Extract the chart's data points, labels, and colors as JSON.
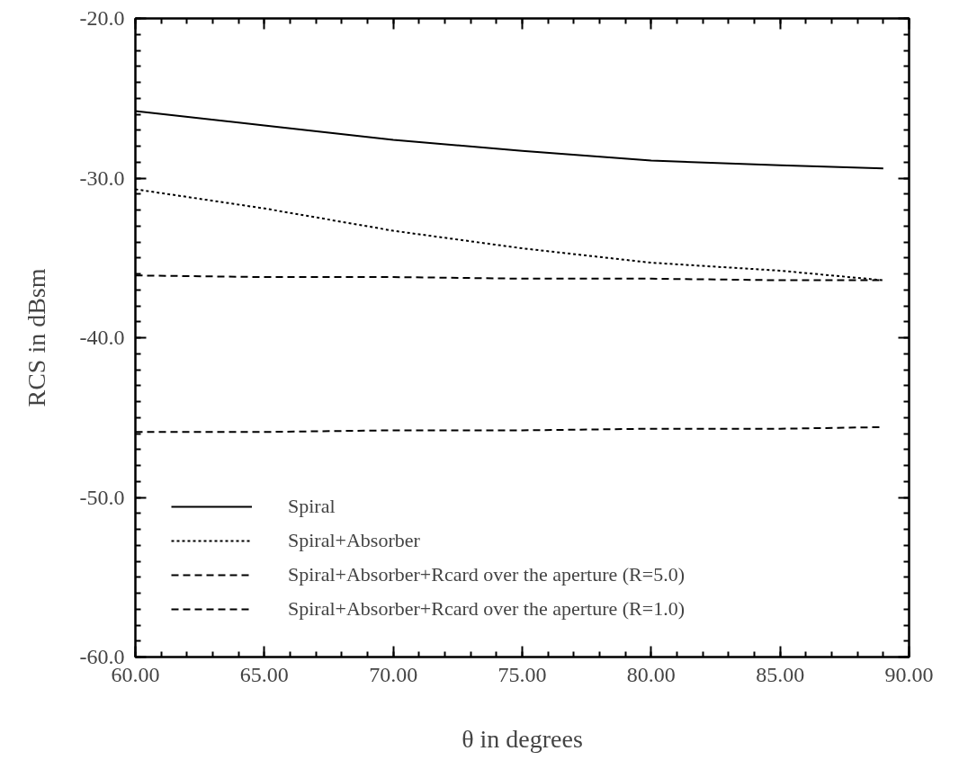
{
  "chart_data": {
    "type": "line",
    "xlabel": "θ in degrees",
    "ylabel": "RCS in dBsm",
    "xlim": [
      60,
      90
    ],
    "ylim": [
      -60,
      -20
    ],
    "xticks": [
      {
        "value": 60,
        "label": "60.00"
      },
      {
        "value": 65,
        "label": "65.00"
      },
      {
        "value": 70,
        "label": "70.00"
      },
      {
        "value": 75,
        "label": "75.00"
      },
      {
        "value": 80,
        "label": "80.00"
      },
      {
        "value": 85,
        "label": "85.00"
      },
      {
        "value": 90,
        "label": "90.00"
      }
    ],
    "yticks": [
      {
        "value": -60,
        "label": "-60.0"
      },
      {
        "value": -50,
        "label": "-50.0"
      },
      {
        "value": -40,
        "label": "-40.0"
      },
      {
        "value": -30,
        "label": "-30.0"
      },
      {
        "value": -20,
        "label": "-20.0"
      }
    ],
    "x": [
      60,
      65,
      70,
      75,
      80,
      85,
      89
    ],
    "grid": false,
    "legend": "bottom left",
    "series": [
      {
        "name": "Spiral",
        "color": "#000000",
        "line_style": "solid",
        "values": [
          -25.8,
          -26.7,
          -27.6,
          -28.3,
          -28.9,
          -29.2,
          -29.4
        ]
      },
      {
        "name": "Spiral+Absorber",
        "color": "#000000",
        "line_style": "dotted",
        "values": [
          -30.7,
          -31.9,
          -33.3,
          -34.4,
          -35.3,
          -35.8,
          -36.4
        ]
      },
      {
        "name": "Spiral+Absorber+Rcard over the aperture (R=5.0)",
        "color": "#000000",
        "line_style": "dashed",
        "values": [
          -36.1,
          -36.2,
          -36.2,
          -36.3,
          -36.3,
          -36.4,
          -36.4
        ]
      },
      {
        "name": "Spiral+Absorber+Rcard over the aperture (R=1.0)",
        "color": "#000000",
        "line_style": "dashed",
        "values": [
          -45.9,
          -45.9,
          -45.8,
          -45.8,
          -45.7,
          -45.7,
          -45.6
        ]
      }
    ]
  }
}
